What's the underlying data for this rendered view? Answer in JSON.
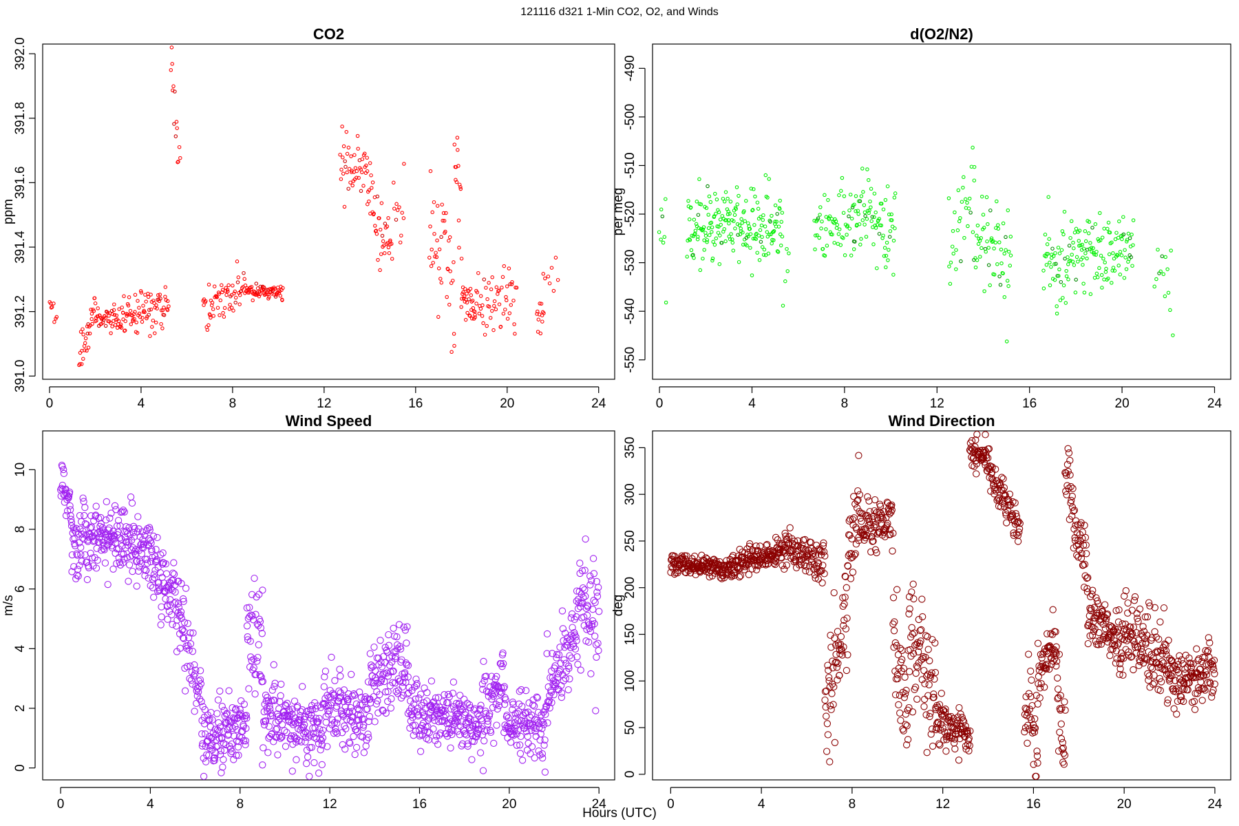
{
  "figure": {
    "title": "121116   d321   1-Min CO2, O2, and Winds",
    "xlabel": "Hours (UTC)"
  },
  "chart_data": [
    {
      "id": "co2",
      "type": "scatter",
      "title": "CO2",
      "xlabel": "Hours (UTC)",
      "ylabel": "ppm",
      "color": "#ff0000",
      "marker_color_dense": "#cc0000",
      "xlim": [
        -0.3,
        24.7
      ],
      "ylim": [
        390.99,
        392.03
      ],
      "xticks": [
        0,
        4,
        8,
        12,
        16,
        20,
        24
      ],
      "yticks": [
        391.0,
        391.2,
        391.4,
        391.6,
        391.8,
        392.0
      ],
      "ytick_labels": [
        "391.0",
        "391.2",
        "391.4",
        "391.6",
        "391.8",
        "392.0"
      ],
      "segments": [
        {
          "x0": 0.0,
          "x1": 0.3,
          "base": [
            391.23,
            391.19
          ],
          "noise": 0.02,
          "n": 8
        },
        {
          "x0": 1.3,
          "x1": 2.0,
          "base": [
            391.05,
            391.22
          ],
          "noise": 0.04,
          "n": 30
        },
        {
          "x0": 2.0,
          "x1": 3.2,
          "base": [
            391.18,
            391.17
          ],
          "noise": 0.02,
          "n": 50
        },
        {
          "x0": 3.2,
          "x1": 5.2,
          "base": [
            391.18,
            391.22
          ],
          "noise": 0.05,
          "n": 80
        },
        {
          "x0": 5.3,
          "x1": 5.7,
          "base": [
            391.95,
            391.65
          ],
          "noise": 0.08,
          "n": 14
        },
        {
          "x0": 6.7,
          "x1": 7.0,
          "base": [
            391.18,
            391.25
          ],
          "noise": 0.06,
          "n": 10
        },
        {
          "x0": 7.0,
          "x1": 8.6,
          "base": [
            391.22,
            391.28
          ],
          "noise": 0.04,
          "n": 55
        },
        {
          "x0": 8.6,
          "x1": 10.2,
          "base": [
            391.26,
            391.26
          ],
          "noise": 0.015,
          "n": 70
        },
        {
          "x0": 12.7,
          "x1": 13.9,
          "base": [
            391.65,
            391.65
          ],
          "noise": 0.06,
          "n": 45
        },
        {
          "x0": 13.9,
          "x1": 14.9,
          "base": [
            391.55,
            391.38
          ],
          "noise": 0.07,
          "n": 40
        },
        {
          "x0": 14.9,
          "x1": 15.5,
          "base": [
            391.45,
            391.55
          ],
          "noise": 0.08,
          "n": 14
        },
        {
          "x0": 16.6,
          "x1": 17.7,
          "base": [
            391.45,
            391.3
          ],
          "noise": 0.13,
          "n": 40
        },
        {
          "x0": 17.7,
          "x1": 18.0,
          "base": [
            391.7,
            391.55
          ],
          "noise": 0.12,
          "n": 14
        },
        {
          "x0": 18.0,
          "x1": 18.6,
          "base": [
            391.25,
            391.2
          ],
          "noise": 0.04,
          "n": 30
        },
        {
          "x0": 18.6,
          "x1": 20.4,
          "base": [
            391.22,
            391.25
          ],
          "noise": 0.08,
          "n": 55
        },
        {
          "x0": 21.3,
          "x1": 21.6,
          "base": [
            391.16,
            391.2
          ],
          "noise": 0.03,
          "n": 12
        },
        {
          "x0": 21.6,
          "x1": 22.2,
          "base": [
            391.3,
            391.33
          ],
          "noise": 0.03,
          "n": 8
        }
      ]
    },
    {
      "id": "o2",
      "type": "scatter",
      "title": "d(O2/N2)",
      "xlabel": "Hours (UTC)",
      "ylabel": "per meg",
      "color": "#00ee00",
      "marker_color_dense": "#008800",
      "xlim": [
        -0.3,
        24.7
      ],
      "ylim": [
        -554,
        -485
      ],
      "xticks": [
        0,
        4,
        8,
        12,
        16,
        20,
        24
      ],
      "yticks": [
        -490,
        -500,
        -510,
        -520,
        -530,
        -540,
        -550
      ],
      "ytick_labels": [
        "-490",
        "-500",
        "-510",
        "-520",
        "-530",
        "-540",
        "-550"
      ],
      "segments": [
        {
          "x0": 0.0,
          "x1": 0.3,
          "base": [
            -523,
            -525
          ],
          "noise": 6,
          "n": 8
        },
        {
          "x0": 1.2,
          "x1": 3.0,
          "base": [
            -522,
            -522
          ],
          "noise": 5,
          "n": 90
        },
        {
          "x0": 3.0,
          "x1": 5.3,
          "base": [
            -522,
            -523
          ],
          "noise": 6,
          "n": 110
        },
        {
          "x0": 5.3,
          "x1": 5.6,
          "base": [
            -530,
            -535
          ],
          "noise": 6,
          "n": 6
        },
        {
          "x0": 6.7,
          "x1": 8.4,
          "base": [
            -523,
            -520
          ],
          "noise": 5,
          "n": 60
        },
        {
          "x0": 8.4,
          "x1": 10.2,
          "base": [
            -518,
            -522
          ],
          "noise": 6,
          "n": 75
        },
        {
          "x0": 12.5,
          "x1": 13.6,
          "base": [
            -528,
            -515
          ],
          "noise": 8,
          "n": 30
        },
        {
          "x0": 13.6,
          "x1": 15.2,
          "base": [
            -525,
            -530
          ],
          "noise": 7,
          "n": 60
        },
        {
          "x0": 16.6,
          "x1": 18.3,
          "base": [
            -530,
            -528
          ],
          "noise": 7,
          "n": 70
        },
        {
          "x0": 18.3,
          "x1": 20.5,
          "base": [
            -527,
            -527
          ],
          "noise": 5,
          "n": 90
        },
        {
          "x0": 21.4,
          "x1": 22.2,
          "base": [
            -532,
            -535
          ],
          "noise": 8,
          "n": 14
        }
      ]
    },
    {
      "id": "wind_speed",
      "type": "scatter",
      "title": "Wind Speed",
      "xlabel": "Hours (UTC)",
      "ylabel": "m/s",
      "color": "#a020f0",
      "xlim": [
        -0.8,
        24.7
      ],
      "ylim": [
        -0.4,
        11.3
      ],
      "xticks": [
        0,
        4,
        8,
        12,
        16,
        20,
        24
      ],
      "yticks": [
        0,
        2,
        4,
        6,
        8,
        10
      ],
      "ytick_labels": [
        "0",
        "2",
        "4",
        "6",
        "8",
        "10"
      ],
      "segments": [
        {
          "x0": 0.0,
          "x1": 0.5,
          "base": [
            9.6,
            8.8
          ],
          "noise": 0.6,
          "n": 30
        },
        {
          "x0": 0.5,
          "x1": 2.0,
          "base": [
            7.5,
            7.8
          ],
          "noise": 0.8,
          "n": 90
        },
        {
          "x0": 2.0,
          "x1": 4.0,
          "base": [
            7.9,
            7.2
          ],
          "noise": 0.8,
          "n": 120
        },
        {
          "x0": 4.0,
          "x1": 5.5,
          "base": [
            6.8,
            5.2
          ],
          "noise": 0.8,
          "n": 90
        },
        {
          "x0": 5.5,
          "x1": 6.3,
          "base": [
            4.5,
            2.0
          ],
          "noise": 1.0,
          "n": 40
        },
        {
          "x0": 6.3,
          "x1": 8.3,
          "base": [
            1.2,
            1.3
          ],
          "noise": 0.8,
          "n": 120
        },
        {
          "x0": 8.3,
          "x1": 9.0,
          "base": [
            5.0,
            4.0
          ],
          "noise": 1.2,
          "n": 40
        },
        {
          "x0": 9.0,
          "x1": 11.7,
          "base": [
            1.8,
            1.1
          ],
          "noise": 0.8,
          "n": 160
        },
        {
          "x0": 11.7,
          "x1": 13.8,
          "base": [
            2.3,
            1.6
          ],
          "noise": 0.8,
          "n": 120
        },
        {
          "x0": 13.8,
          "x1": 15.5,
          "base": [
            2.8,
            3.4
          ],
          "noise": 1.0,
          "n": 100
        },
        {
          "x0": 15.5,
          "x1": 18.8,
          "base": [
            1.8,
            1.6
          ],
          "noise": 0.7,
          "n": 190
        },
        {
          "x0": 18.8,
          "x1": 19.8,
          "base": [
            2.0,
            2.8
          ],
          "noise": 1.0,
          "n": 60
        },
        {
          "x0": 19.8,
          "x1": 21.6,
          "base": [
            1.8,
            1.2
          ],
          "noise": 0.7,
          "n": 100
        },
        {
          "x0": 21.6,
          "x1": 23.0,
          "base": [
            2.5,
            4.5
          ],
          "noise": 0.9,
          "n": 80
        },
        {
          "x0": 23.0,
          "x1": 24.0,
          "base": [
            5.0,
            5.5
          ],
          "noise": 1.3,
          "n": 60
        }
      ]
    },
    {
      "id": "wind_direction",
      "type": "scatter",
      "title": "Wind Direction",
      "xlabel": "Hours (UTC)",
      "ylabel": "deg",
      "color": "#8b0000",
      "xlim": [
        -0.8,
        24.7
      ],
      "ylim": [
        -6,
        368
      ],
      "xticks": [
        0,
        4,
        8,
        12,
        16,
        20,
        24
      ],
      "yticks": [
        0,
        50,
        100,
        150,
        200,
        250,
        300,
        350
      ],
      "ytick_labels": [
        "0",
        "50",
        "100",
        "150",
        "200",
        "250",
        "300",
        "350"
      ],
      "segments": [
        {
          "x0": 0.0,
          "x1": 2.5,
          "base": [
            225,
            220
          ],
          "noise": 7,
          "n": 150
        },
        {
          "x0": 2.5,
          "x1": 5.0,
          "base": [
            222,
            240
          ],
          "noise": 9,
          "n": 150
        },
        {
          "x0": 5.0,
          "x1": 6.8,
          "base": [
            245,
            225
          ],
          "noise": 14,
          "n": 100
        },
        {
          "x0": 6.8,
          "x1": 7.8,
          "base": [
            60,
            180
          ],
          "noise": 35,
          "n": 60
        },
        {
          "x0": 7.8,
          "x1": 8.3,
          "base": [
            230,
            300
          ],
          "noise": 30,
          "n": 30
        },
        {
          "x0": 8.3,
          "x1": 9.8,
          "base": [
            270,
            270
          ],
          "noise": 18,
          "n": 90
        },
        {
          "x0": 9.8,
          "x1": 10.5,
          "base": [
            150,
            60
          ],
          "noise": 40,
          "n": 40
        },
        {
          "x0": 10.5,
          "x1": 11.7,
          "base": [
            150,
            90
          ],
          "noise": 40,
          "n": 70
        },
        {
          "x0": 11.7,
          "x1": 13.2,
          "base": [
            55,
            35
          ],
          "noise": 15,
          "n": 90
        },
        {
          "x0": 13.2,
          "x1": 14.0,
          "base": [
            345,
            340
          ],
          "noise": 14,
          "n": 50
        },
        {
          "x0": 14.0,
          "x1": 15.4,
          "base": [
            330,
            260
          ],
          "noise": 14,
          "n": 80
        },
        {
          "x0": 15.6,
          "x1": 16.2,
          "base": [
            80,
            40
          ],
          "noise": 30,
          "n": 35
        },
        {
          "x0": 16.2,
          "x1": 17.0,
          "base": [
            110,
            140
          ],
          "noise": 20,
          "n": 50
        },
        {
          "x0": 17.0,
          "x1": 17.4,
          "base": [
            100,
            30
          ],
          "noise": 35,
          "n": 25
        },
        {
          "x0": 17.4,
          "x1": 18.4,
          "base": [
            320,
            210
          ],
          "noise": 25,
          "n": 60
        },
        {
          "x0": 18.4,
          "x1": 20.0,
          "base": [
            170,
            135
          ],
          "noise": 20,
          "n": 100
        },
        {
          "x0": 20.0,
          "x1": 22.0,
          "base": [
            160,
            110
          ],
          "noise": 30,
          "n": 120
        },
        {
          "x0": 22.0,
          "x1": 24.0,
          "base": [
            100,
            110
          ],
          "noise": 22,
          "n": 120
        }
      ]
    }
  ]
}
